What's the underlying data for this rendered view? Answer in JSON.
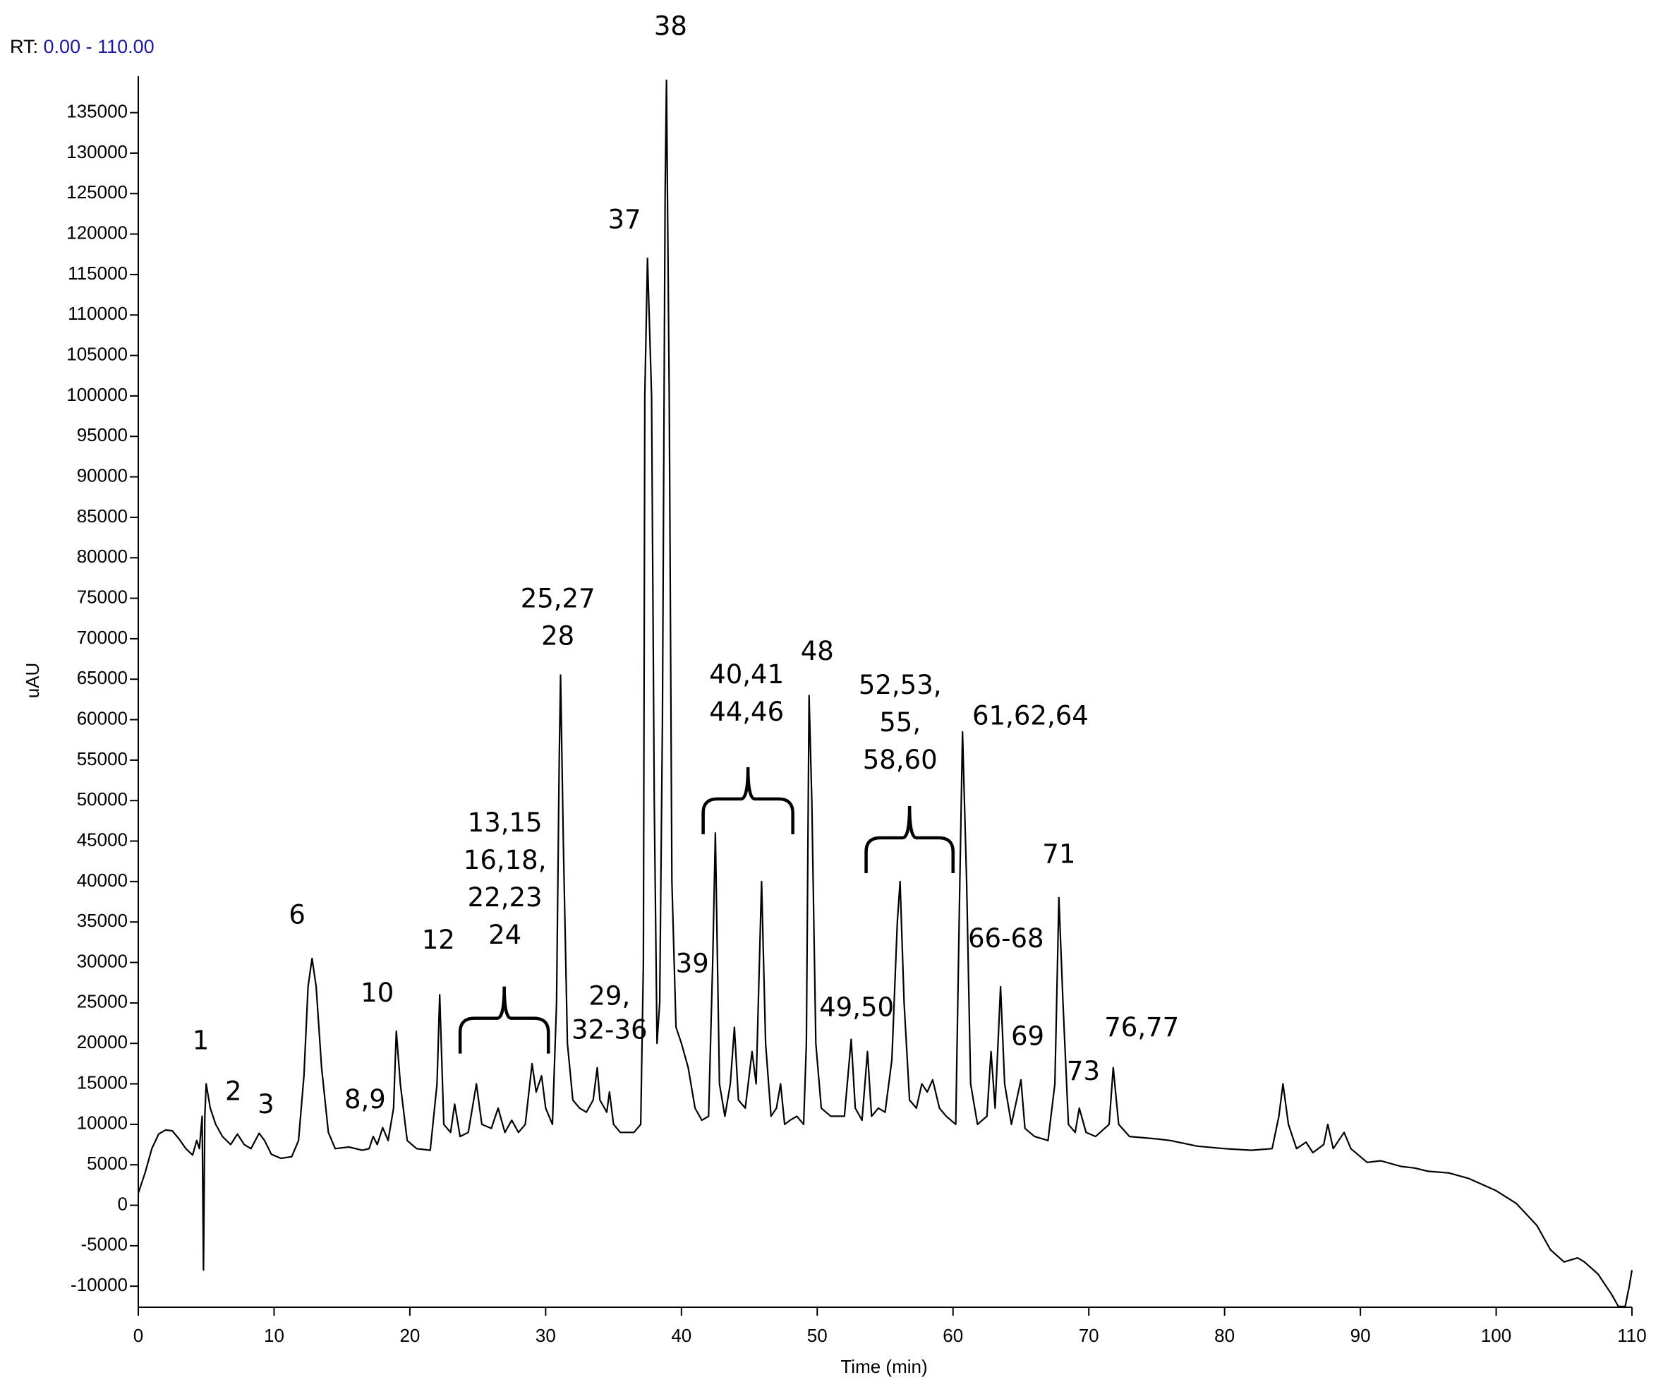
{
  "chart_data": {
    "type": "line",
    "rt_label": "RT:",
    "rt_range": "0.00 - 110.00",
    "xlabel": "Time (min)",
    "ylabel": "uAU",
    "color": "#000000",
    "xlim": [
      0,
      110
    ],
    "xticks": [
      0,
      10,
      20,
      30,
      40,
      50,
      60,
      70,
      80,
      90,
      100,
      110
    ],
    "ylim": [
      -12600,
      139500
    ],
    "yticks": [
      -10000,
      -5000,
      0,
      5000,
      10000,
      15000,
      20000,
      25000,
      30000,
      35000,
      40000,
      45000,
      50000,
      55000,
      60000,
      65000,
      70000,
      75000,
      80000,
      85000,
      90000,
      95000,
      100000,
      105000,
      110000,
      115000,
      120000,
      125000,
      130000,
      135000
    ],
    "x": [
      0,
      0.5,
      1,
      1.5,
      2,
      2.5,
      3,
      3.5,
      4,
      4.3,
      4.5,
      4.7,
      4.8,
      4.9,
      5.0,
      5.3,
      5.7,
      6.2,
      6.8,
      7.3,
      7.8,
      8.3,
      8.9,
      9.3,
      9.8,
      10.5,
      11.3,
      11.8,
      12.2,
      12.5,
      12.8,
      13.1,
      13.5,
      14,
      14.5,
      15.5,
      16.5,
      17,
      17.3,
      17.6,
      18,
      18.4,
      18.8,
      19,
      19.3,
      19.8,
      20.5,
      21.5,
      22,
      22.2,
      22.5,
      23,
      23.3,
      23.7,
      24.3,
      24.9,
      25.3,
      26,
      26.5,
      27,
      27.5,
      28,
      28.5,
      29,
      29.3,
      29.7,
      30,
      30.5,
      30.8,
      31,
      31.1,
      31.3,
      31.6,
      32,
      32.5,
      33,
      33.5,
      33.8,
      34,
      34.5,
      34.7,
      35,
      35.5,
      36.5,
      37,
      37.2,
      37.3,
      37.5,
      37.8,
      38,
      38.2,
      38.4,
      38.6,
      38.8,
      38.9,
      39.1,
      39.3,
      39.6,
      40,
      40.5,
      41,
      41.5,
      42,
      42.3,
      42.5,
      42.8,
      43.2,
      43.6,
      43.9,
      44.2,
      44.7,
      45.2,
      45.5,
      45.9,
      46.2,
      46.6,
      47,
      47.3,
      47.6,
      48,
      48.5,
      49,
      49.2,
      49.4,
      49.6,
      49.9,
      50.3,
      51,
      52,
      52.5,
      52.8,
      53.3,
      53.7,
      54,
      54.5,
      55,
      55.5,
      55.9,
      56.1,
      56.4,
      56.8,
      57.3,
      57.7,
      58.1,
      58.5,
      59,
      59.5,
      60.2,
      60.5,
      60.7,
      61,
      61.3,
      61.8,
      62.5,
      62.8,
      63.1,
      63.5,
      63.8,
      64.3,
      65,
      65.3,
      66,
      67,
      67.5,
      67.8,
      68.1,
      68.5,
      69,
      69.3,
      69.8,
      70.5,
      71.5,
      71.8,
      72.2,
      73,
      75,
      76,
      78,
      80,
      82,
      83.5,
      84,
      84.3,
      84.7,
      85.3,
      86,
      86.5,
      87.3,
      87.6,
      88,
      88.8,
      89.3,
      90.5,
      91.5,
      93,
      94,
      95,
      96.5,
      98,
      100,
      101.5,
      103,
      104,
      105,
      106,
      106.5,
      107.5,
      108.5,
      109,
      109.5,
      109.8,
      110
    ],
    "values": [
      1500,
      4000,
      7000,
      8800,
      9300,
      9200,
      8200,
      7000,
      6200,
      8000,
      7000,
      11000,
      -8000,
      11000,
      15000,
      12000,
      10000,
      8500,
      7500,
      8800,
      7500,
      7000,
      8900,
      8000,
      6300,
      5800,
      6000,
      8000,
      16000,
      27000,
      30500,
      27000,
      17000,
      9000,
      7000,
      7200,
      6800,
      7000,
      8500,
      7500,
      9600,
      8000,
      12000,
      21500,
      15000,
      8000,
      7000,
      6800,
      15000,
      26000,
      10000,
      9000,
      12500,
      8500,
      9000,
      15000,
      10000,
      9500,
      12000,
      9000,
      10500,
      9000,
      10000,
      17500,
      14000,
      16000,
      12000,
      10000,
      25000,
      55000,
      65500,
      45000,
      20000,
      13000,
      12000,
      11500,
      13000,
      17000,
      13000,
      11500,
      14000,
      10000,
      9000,
      9000,
      10000,
      30000,
      100000,
      117000,
      100000,
      50000,
      20000,
      25000,
      60000,
      125000,
      139000,
      100000,
      40000,
      22000,
      20000,
      17000,
      12000,
      10500,
      11000,
      30000,
      46000,
      15000,
      11000,
      15000,
      22000,
      13000,
      12000,
      19000,
      15000,
      40000,
      20000,
      11000,
      12000,
      15000,
      10000,
      10500,
      11000,
      10000,
      20000,
      63000,
      50000,
      20000,
      12000,
      11000,
      11000,
      20500,
      12000,
      10500,
      19000,
      11000,
      12000,
      11500,
      18000,
      35000,
      40000,
      25000,
      13000,
      12000,
      15000,
      14000,
      15500,
      12000,
      11000,
      10000,
      40000,
      58500,
      40000,
      15000,
      10000,
      11000,
      19000,
      12000,
      27000,
      15000,
      10000,
      15500,
      9500,
      8500,
      8000,
      15000,
      38000,
      25000,
      10000,
      9000,
      12000,
      9000,
      8500,
      10000,
      17000,
      10000,
      8500,
      8200,
      8000,
      7300,
      7000,
      6800,
      7000,
      11000,
      15000,
      10000,
      7000,
      7800,
      6500,
      7500,
      10000,
      7000,
      9000,
      7000,
      5300,
      5500,
      4800,
      4600,
      4200,
      4000,
      3300,
      1800,
      200,
      -2500,
      -5500,
      -7000,
      -6500,
      -7000,
      -8500,
      -11000,
      -12500,
      -12500,
      -10000,
      -8000
    ],
    "annotations": [
      {
        "lines": [
          "1"
        ],
        "x": 4.6,
        "y": 20200
      },
      {
        "lines": [
          "2"
        ],
        "x": 7.0,
        "y": 13900
      },
      {
        "lines": [
          "3"
        ],
        "x": 9.4,
        "y": 12300
      },
      {
        "lines": [
          "6"
        ],
        "x": 11.7,
        "y": 35700
      },
      {
        "lines": [
          "8,9"
        ],
        "x": 16.7,
        "y": 12900
      },
      {
        "lines": [
          "10"
        ],
        "x": 17.6,
        "y": 26100
      },
      {
        "lines": [
          "12"
        ],
        "x": 22.1,
        "y": 32600
      },
      {
        "lines": [
          "13,15",
          "16,18,",
          "22,23",
          "24"
        ],
        "x": 27.0,
        "y": 47100
      },
      {
        "lines": [
          "25,27",
          "28"
        ],
        "x": 30.9,
        "y": 74800
      },
      {
        "lines": [
          "29,",
          "32-36"
        ],
        "x": 34.7,
        "y": 25700
      },
      {
        "lines": [
          "37"
        ],
        "x": 35.8,
        "y": 121600
      },
      {
        "lines": [
          "38"
        ],
        "x": 39.2,
        "y": 145500
      },
      {
        "lines": [
          "39"
        ],
        "x": 40.8,
        "y": 29700
      },
      {
        "lines": [
          "40,41",
          "44,46"
        ],
        "x": 44.8,
        "y": 65400
      },
      {
        "lines": [
          "48"
        ],
        "x": 50.0,
        "y": 68300
      },
      {
        "lines": [
          "49,50"
        ],
        "x": 52.9,
        "y": 24300
      },
      {
        "lines": [
          "52,53,",
          "55,",
          "58,60"
        ],
        "x": 56.1,
        "y": 64100
      },
      {
        "lines": [
          "61,62,64"
        ],
        "x": 65.7,
        "y": 60300
      },
      {
        "lines": [
          "66-68"
        ],
        "x": 63.9,
        "y": 32800
      },
      {
        "lines": [
          "69"
        ],
        "x": 65.5,
        "y": 20700
      },
      {
        "lines": [
          "71"
        ],
        "x": 67.8,
        "y": 43200
      },
      {
        "lines": [
          "73"
        ],
        "x": 69.6,
        "y": 16400
      },
      {
        "lines": [
          "76,77"
        ],
        "x": 73.9,
        "y": 21800
      }
    ],
    "braces": [
      {
        "x0": 23.7,
        "x1": 30.2,
        "y": 23100
      },
      {
        "x0": 41.6,
        "x1": 48.2,
        "y": 50200
      },
      {
        "x0": 53.6,
        "x1": 60.0,
        "y": 45400
      }
    ]
  }
}
